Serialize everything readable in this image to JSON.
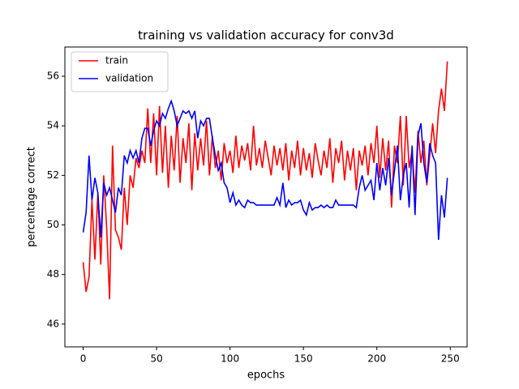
{
  "chart_data": {
    "type": "line",
    "title": "training vs validation accuracy for conv3d",
    "x_label": "epochs",
    "y_label": "percentage correct",
    "x": [
      0,
      2,
      4,
      6,
      8,
      10,
      12,
      14,
      16,
      18,
      20,
      22,
      24,
      26,
      28,
      30,
      32,
      34,
      36,
      38,
      40,
      42,
      44,
      46,
      48,
      50,
      52,
      54,
      56,
      58,
      60,
      62,
      64,
      66,
      68,
      70,
      72,
      74,
      76,
      78,
      80,
      82,
      84,
      86,
      88,
      90,
      92,
      94,
      96,
      98,
      100,
      102,
      104,
      106,
      108,
      110,
      112,
      114,
      116,
      118,
      120,
      122,
      124,
      126,
      128,
      130,
      132,
      134,
      136,
      138,
      140,
      142,
      144,
      146,
      148,
      150,
      152,
      154,
      156,
      158,
      160,
      162,
      164,
      166,
      168,
      170,
      172,
      174,
      176,
      178,
      180,
      182,
      184,
      186,
      188,
      190,
      192,
      194,
      196,
      198,
      200,
      202,
      204,
      206,
      208,
      210,
      212,
      214,
      216,
      218,
      220,
      222,
      224,
      226,
      228,
      230,
      232,
      234,
      236,
      238,
      240,
      242,
      244,
      246,
      248
    ],
    "series": [
      {
        "name": "train",
        "color": "#ff0000",
        "values": [
          48.5,
          47.3,
          47.9,
          51.0,
          48.6,
          51.3,
          48.4,
          52.0,
          49.9,
          47.0,
          53.2,
          49.8,
          49.5,
          49.0,
          51.5,
          50.0,
          52.0,
          51.5,
          52.7,
          52.3,
          53.0,
          52.5,
          54.7,
          52.5,
          54.5,
          52.0,
          54.8,
          52.1,
          54.0,
          51.5,
          53.6,
          52.2,
          54.4,
          51.7,
          53.5,
          52.5,
          54.1,
          51.4,
          53.7,
          52.2,
          53.5,
          52.4,
          54.2,
          52.0,
          53.6,
          52.3,
          53.0,
          51.8,
          53.3,
          52.5,
          53.0,
          52.1,
          53.6,
          52.3,
          53.2,
          52.6,
          53.3,
          52.2,
          54.0,
          52.4,
          53.1,
          52.3,
          53.4,
          52.7,
          52.0,
          53.2,
          52.4,
          53.1,
          52.2,
          53.3,
          51.8,
          53.0,
          52.3,
          53.4,
          52.0,
          53.1,
          52.2,
          52.9,
          51.9,
          53.3,
          52.6,
          52.0,
          53.0,
          52.3,
          53.5,
          51.7,
          53.1,
          52.5,
          53.4,
          51.8,
          53.0,
          52.2,
          53.1,
          51.4,
          53.0,
          52.4,
          53.2,
          52.0,
          53.3,
          52.5,
          54.0,
          51.9,
          53.5,
          52.2,
          53.4,
          50.7,
          53.2,
          52.5,
          54.4,
          51.6,
          54.4,
          52.3,
          53.0,
          51.3,
          53.8,
          52.5,
          53.4,
          51.6,
          52.8,
          54.1,
          52.9,
          54.6,
          55.5,
          54.6,
          56.6
        ]
      },
      {
        "name": "validation",
        "color": "#0000ff",
        "values": [
          49.7,
          50.5,
          52.8,
          51.0,
          51.9,
          51.3,
          49.5,
          51.7,
          51.2,
          51.5,
          51.0,
          50.5,
          51.5,
          51.2,
          52.8,
          52.5,
          53.0,
          52.7,
          53.0,
          52.5,
          53.5,
          53.9,
          53.9,
          53.2,
          53.8,
          54.2,
          54.0,
          54.5,
          54.3,
          54.7,
          55.0,
          54.6,
          54.0,
          54.3,
          54.6,
          54.5,
          54.6,
          54.3,
          54.6,
          53.5,
          54.2,
          54.0,
          54.3,
          54.3,
          53.5,
          52.8,
          52.2,
          52.5,
          51.7,
          51.5,
          50.9,
          51.3,
          50.8,
          51.0,
          50.8,
          50.7,
          51.0,
          50.9,
          50.9,
          50.8,
          50.8,
          50.8,
          50.8,
          50.8,
          50.8,
          50.8,
          51.1,
          50.8,
          51.7,
          50.7,
          51.0,
          50.8,
          50.9,
          50.9,
          51.0,
          50.6,
          50.4,
          50.9,
          50.6,
          50.7,
          50.7,
          50.8,
          50.7,
          50.8,
          50.7,
          50.7,
          51.0,
          50.8,
          50.8,
          50.8,
          50.8,
          50.8,
          50.8,
          50.7,
          51.5,
          52.0,
          51.4,
          51.6,
          51.8,
          51.0,
          52.5,
          51.4,
          52.3,
          51.6,
          52.7,
          51.2,
          52.2,
          53.2,
          51.0,
          52.0,
          52.5,
          50.7,
          53.2,
          50.4,
          53.6,
          54.1,
          52.5,
          51.7,
          53.3,
          52.8,
          52.5,
          49.4,
          51.2,
          50.3,
          51.9
        ]
      }
    ],
    "xlim": [
      -12.45,
      261.45
    ],
    "ylim": [
      45.08,
      57.18
    ],
    "xticks": [
      0,
      50,
      100,
      150,
      200,
      250
    ],
    "yticks": [
      46,
      48,
      50,
      52,
      54,
      56
    ],
    "legend": "upper left"
  }
}
